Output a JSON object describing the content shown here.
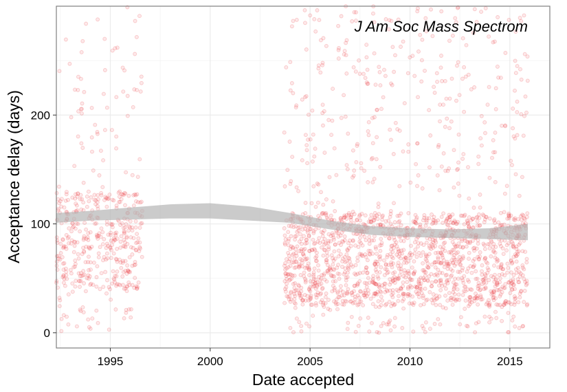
{
  "chart_data": {
    "type": "scatter",
    "title": "J Am Soc Mass Spectrom",
    "xlabel": "Date accepted",
    "ylabel": "Acceptance delay (days)",
    "xlim": [
      1992.3,
      2017.0
    ],
    "ylim": [
      -14,
      300
    ],
    "x_ticks": [
      1995,
      2000,
      2005,
      2010,
      2015
    ],
    "y_ticks": [
      0,
      100,
      200
    ],
    "x_tick_labels": [
      "1995",
      "2000",
      "2005",
      "2010",
      "2015"
    ],
    "y_tick_labels": [
      "0",
      "100",
      "200"
    ],
    "grid": true,
    "point_color": "#e8272d",
    "point_opacity": 0.15,
    "band_color": "#b3b3b3",
    "point_groups": [
      {
        "x_range": [
          1992.3,
          1996.6
        ],
        "y_range": [
          0,
          300
        ],
        "density": "medium",
        "dense_y_range": [
          40,
          130
        ]
      },
      {
        "x_range": [
          2003.7,
          2015.9
        ],
        "y_range": [
          0,
          300
        ],
        "density": "high",
        "dense_y_range": [
          25,
          110
        ]
      }
    ],
    "smooth_band": {
      "x": [
        1992.3,
        1994,
        1996,
        1998,
        2000,
        2002,
        2004,
        2006,
        2008,
        2010,
        2012,
        2014,
        2015.9
      ],
      "lower": [
        101,
        103,
        104,
        105,
        105,
        103,
        101,
        95,
        90,
        88,
        87,
        86,
        85
      ],
      "upper": [
        110,
        112,
        115,
        118,
        119,
        116,
        110,
        103,
        98,
        96,
        95,
        96,
        100
      ]
    }
  }
}
